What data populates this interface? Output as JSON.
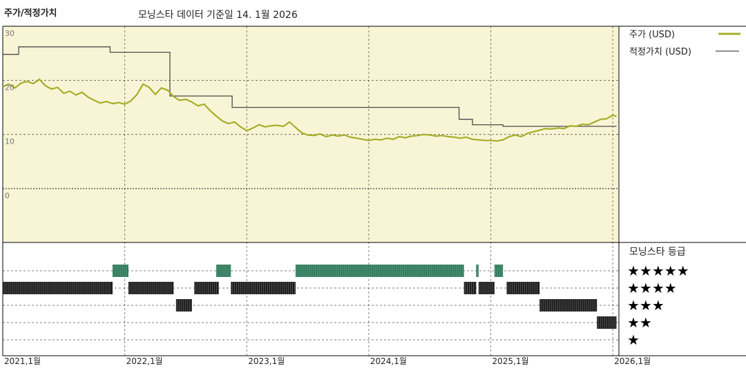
{
  "header": {
    "title": "주가/적정가치",
    "subtitle": "모닝스타 데이터 기준일 14. 1월 2026"
  },
  "legend": {
    "price_label": "주가 (USD)",
    "fair_label": "적정가치 (USD)"
  },
  "rating_panel": {
    "title": "모닝스타 등급",
    "rows": [
      "★★★★★",
      "★★★★",
      "★★★",
      "★★",
      "★"
    ]
  },
  "colors": {
    "plot_bg": "#f8f5d6",
    "price": "#a5ad28",
    "fair": "#4a4a4a",
    "rating5": "#2e7a5c",
    "rating_other": "#1e1e1e",
    "grid": "#000000"
  },
  "chart_data": {
    "type": "line",
    "ylim": [
      0,
      30
    ],
    "yticks": [
      0,
      10,
      20,
      30
    ],
    "xlim": [
      2021.0,
      2026.05
    ],
    "xticks": [
      {
        "x": 2021.0,
        "label": "2021,1월"
      },
      {
        "x": 2022.0,
        "label": "2022,1월"
      },
      {
        "x": 2023.0,
        "label": "2023,1월"
      },
      {
        "x": 2024.0,
        "label": "2024,1월"
      },
      {
        "x": 2025.0,
        "label": "2025,1월"
      },
      {
        "x": 2026.0,
        "label": "2026,1월"
      }
    ],
    "series": [
      {
        "name": "주가 (USD)",
        "x": [
          2021.0,
          2021.05,
          2021.1,
          2021.15,
          2021.2,
          2021.25,
          2021.3,
          2021.35,
          2021.4,
          2021.45,
          2021.5,
          2021.55,
          2021.6,
          2021.65,
          2021.7,
          2021.75,
          2021.8,
          2021.85,
          2021.9,
          2021.95,
          2022.0,
          2022.05,
          2022.1,
          2022.15,
          2022.2,
          2022.25,
          2022.3,
          2022.35,
          2022.4,
          2022.45,
          2022.5,
          2022.55,
          2022.6,
          2022.65,
          2022.7,
          2022.75,
          2022.8,
          2022.85,
          2022.9,
          2022.95,
          2023.0,
          2023.05,
          2023.1,
          2023.15,
          2023.2,
          2023.25,
          2023.3,
          2023.35,
          2023.4,
          2023.45,
          2023.5,
          2023.55,
          2023.6,
          2023.65,
          2023.7,
          2023.75,
          2023.8,
          2023.85,
          2023.9,
          2023.95,
          2024.0,
          2024.05,
          2024.1,
          2024.15,
          2024.2,
          2024.25,
          2024.3,
          2024.35,
          2024.4,
          2024.45,
          2024.5,
          2024.55,
          2024.6,
          2024.65,
          2024.7,
          2024.75,
          2024.8,
          2024.85,
          2024.9,
          2024.95,
          2025.0,
          2025.05,
          2025.1,
          2025.15,
          2025.2,
          2025.25,
          2025.3,
          2025.35,
          2025.4,
          2025.45,
          2025.5,
          2025.55,
          2025.6,
          2025.65,
          2025.7,
          2025.75,
          2025.8,
          2025.85,
          2025.9,
          2025.95,
          2026.0,
          2026.03
        ],
        "values": [
          18.8,
          19.3,
          18.6,
          19.5,
          19.8,
          19.4,
          20.2,
          19.0,
          18.4,
          18.7,
          17.6,
          18.0,
          17.3,
          17.8,
          16.9,
          16.3,
          15.8,
          16.1,
          15.7,
          15.9,
          15.6,
          16.2,
          17.4,
          19.3,
          18.7,
          17.4,
          18.6,
          18.2,
          17.0,
          16.3,
          16.5,
          16.0,
          15.3,
          15.6,
          14.4,
          13.4,
          12.5,
          12.0,
          12.3,
          11.4,
          10.7,
          11.2,
          11.8,
          11.4,
          11.6,
          11.7,
          11.5,
          12.3,
          11.3,
          10.3,
          9.9,
          9.8,
          10.1,
          9.6,
          9.9,
          9.7,
          9.9,
          9.5,
          9.3,
          9.1,
          8.9,
          9.1,
          9.0,
          9.3,
          9.1,
          9.6,
          9.4,
          9.7,
          9.8,
          10.0,
          9.9,
          9.7,
          9.8,
          9.6,
          9.5,
          9.3,
          9.5,
          9.1,
          9.0,
          8.9,
          8.9,
          8.8,
          9.0,
          9.6,
          9.9,
          9.6,
          10.2,
          10.5,
          10.8,
          11.1,
          11.0,
          11.2,
          11.1,
          11.6,
          11.5,
          11.9,
          11.8,
          12.3,
          12.8,
          12.9,
          13.6,
          13.3
        ]
      },
      {
        "name": "적정가치 (USD)",
        "x": [
          2021.0,
          2021.13,
          2021.13,
          2021.88,
          2021.88,
          2022.37,
          2022.37,
          2022.88,
          2022.88,
          2023.23,
          2023.23,
          2024.74,
          2024.74,
          2024.85,
          2024.85,
          2025.1,
          2025.1,
          2025.93,
          2025.93,
          2026.03
        ],
        "values": [
          24.8,
          24.8,
          26.2,
          26.2,
          25.2,
          25.2,
          17.1,
          17.1,
          15.0,
          15.0,
          15.0,
          15.0,
          12.8,
          12.8,
          11.8,
          11.8,
          11.5,
          11.5,
          11.5,
          11.5
        ]
      }
    ],
    "ratings": [
      {
        "stars": 4,
        "from": 2021.0,
        "to": 2021.9
      },
      {
        "stars": 5,
        "from": 2021.9,
        "to": 2022.03
      },
      {
        "stars": 4,
        "from": 2022.03,
        "to": 2022.4
      },
      {
        "stars": 3,
        "from": 2022.42,
        "to": 2022.55
      },
      {
        "stars": 4,
        "from": 2022.57,
        "to": 2022.77
      },
      {
        "stars": 5,
        "from": 2022.75,
        "to": 2022.87
      },
      {
        "stars": 4,
        "from": 2022.87,
        "to": 2023.4
      },
      {
        "stars": 5,
        "from": 2023.4,
        "to": 2024.78
      },
      {
        "stars": 4,
        "from": 2024.78,
        "to": 2024.88
      },
      {
        "stars": 5,
        "from": 2024.88,
        "to": 2024.9
      },
      {
        "stars": 4,
        "from": 2024.9,
        "to": 2025.03
      },
      {
        "stars": 5,
        "from": 2025.03,
        "to": 2025.1
      },
      {
        "stars": 4,
        "from": 2025.13,
        "to": 2025.4
      },
      {
        "stars": 3,
        "from": 2025.4,
        "to": 2025.87
      },
      {
        "stars": 2,
        "from": 2025.87,
        "to": 2026.03
      }
    ]
  }
}
